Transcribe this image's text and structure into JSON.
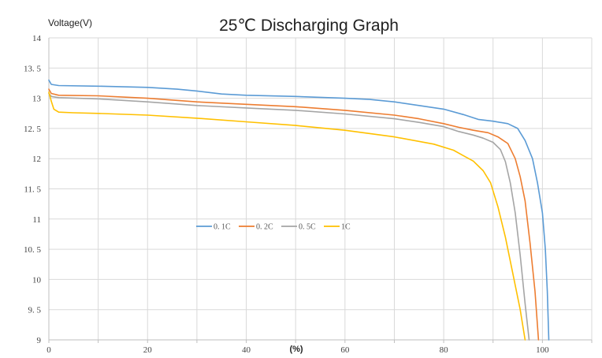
{
  "chart_data": {
    "type": "line",
    "title": "25℃ Discharging Graph",
    "ylabel": "Voltage(V)",
    "xlabel": "(%)",
    "xlim": [
      0,
      110
    ],
    "ylim": [
      9,
      14
    ],
    "x_ticks": [
      0,
      20,
      40,
      60,
      80,
      100
    ],
    "y_ticks": [
      9,
      9.5,
      10,
      10.5,
      11,
      11.5,
      12,
      12.5,
      13,
      13.5,
      14
    ],
    "y_tick_labels": [
      "9",
      "9. 5",
      "10",
      "10. 5",
      "11",
      "11. 5",
      "12",
      "12. 5",
      "13",
      "13. 5",
      "14"
    ],
    "x_tick_labels": [
      "0",
      "20",
      "40",
      "60",
      "80",
      "100"
    ],
    "grid": true,
    "legend_position": "center-left",
    "series": [
      {
        "name": "0. 1C",
        "color": "#5b9bd5",
        "points": [
          [
            0,
            13.3
          ],
          [
            0.5,
            13.23
          ],
          [
            2,
            13.21
          ],
          [
            10,
            13.2
          ],
          [
            20,
            13.18
          ],
          [
            26,
            13.15
          ],
          [
            30,
            13.12
          ],
          [
            35,
            13.07
          ],
          [
            40,
            13.05
          ],
          [
            50,
            13.03
          ],
          [
            60,
            13.0
          ],
          [
            65,
            12.98
          ],
          [
            70,
            12.94
          ],
          [
            75,
            12.88
          ],
          [
            80,
            12.82
          ],
          [
            84,
            12.73
          ],
          [
            87,
            12.65
          ],
          [
            90,
            12.62
          ],
          [
            93,
            12.58
          ],
          [
            95,
            12.5
          ],
          [
            96.5,
            12.3
          ],
          [
            98,
            12.0
          ],
          [
            99,
            11.6
          ],
          [
            100,
            11.1
          ],
          [
            100.6,
            10.5
          ],
          [
            101,
            9.8
          ],
          [
            101.3,
            9.0
          ]
        ]
      },
      {
        "name": "0. 2C",
        "color": "#ed7d31",
        "points": [
          [
            0,
            13.15
          ],
          [
            0.5,
            13.08
          ],
          [
            2,
            13.05
          ],
          [
            10,
            13.04
          ],
          [
            20,
            13.0
          ],
          [
            30,
            12.94
          ],
          [
            40,
            12.9
          ],
          [
            50,
            12.86
          ],
          [
            60,
            12.8
          ],
          [
            70,
            12.72
          ],
          [
            75,
            12.66
          ],
          [
            80,
            12.58
          ],
          [
            83,
            12.52
          ],
          [
            86,
            12.47
          ],
          [
            89,
            12.43
          ],
          [
            91,
            12.36
          ],
          [
            93,
            12.25
          ],
          [
            94.5,
            12.0
          ],
          [
            95.5,
            11.7
          ],
          [
            96.5,
            11.3
          ],
          [
            97.5,
            10.6
          ],
          [
            98.5,
            9.8
          ],
          [
            99.2,
            9.0
          ]
        ]
      },
      {
        "name": "0. 5C",
        "color": "#a5a5a5",
        "points": [
          [
            0,
            13.08
          ],
          [
            0.5,
            13.03
          ],
          [
            2,
            13.01
          ],
          [
            10,
            12.99
          ],
          [
            20,
            12.94
          ],
          [
            30,
            12.88
          ],
          [
            40,
            12.84
          ],
          [
            50,
            12.8
          ],
          [
            60,
            12.74
          ],
          [
            70,
            12.66
          ],
          [
            75,
            12.6
          ],
          [
            80,
            12.53
          ],
          [
            83,
            12.45
          ],
          [
            86,
            12.39
          ],
          [
            88,
            12.34
          ],
          [
            90,
            12.27
          ],
          [
            91.5,
            12.15
          ],
          [
            92.5,
            11.95
          ],
          [
            93.5,
            11.6
          ],
          [
            94.5,
            11.1
          ],
          [
            95.5,
            10.4
          ],
          [
            96.5,
            9.6
          ],
          [
            97.3,
            9.0
          ]
        ]
      },
      {
        "name": "1C",
        "color": "#ffc000",
        "points": [
          [
            0,
            13.1
          ],
          [
            0.5,
            12.95
          ],
          [
            1,
            12.82
          ],
          [
            2,
            12.77
          ],
          [
            5,
            12.76
          ],
          [
            10,
            12.75
          ],
          [
            20,
            12.72
          ],
          [
            30,
            12.67
          ],
          [
            40,
            12.61
          ],
          [
            50,
            12.55
          ],
          [
            60,
            12.47
          ],
          [
            70,
            12.36
          ],
          [
            78,
            12.24
          ],
          [
            82,
            12.14
          ],
          [
            84,
            12.05
          ],
          [
            86,
            11.96
          ],
          [
            88,
            11.8
          ],
          [
            89.5,
            11.6
          ],
          [
            91,
            11.2
          ],
          [
            92.5,
            10.7
          ],
          [
            94,
            10.1
          ],
          [
            95.5,
            9.5
          ],
          [
            96.5,
            9.0
          ]
        ]
      }
    ]
  }
}
